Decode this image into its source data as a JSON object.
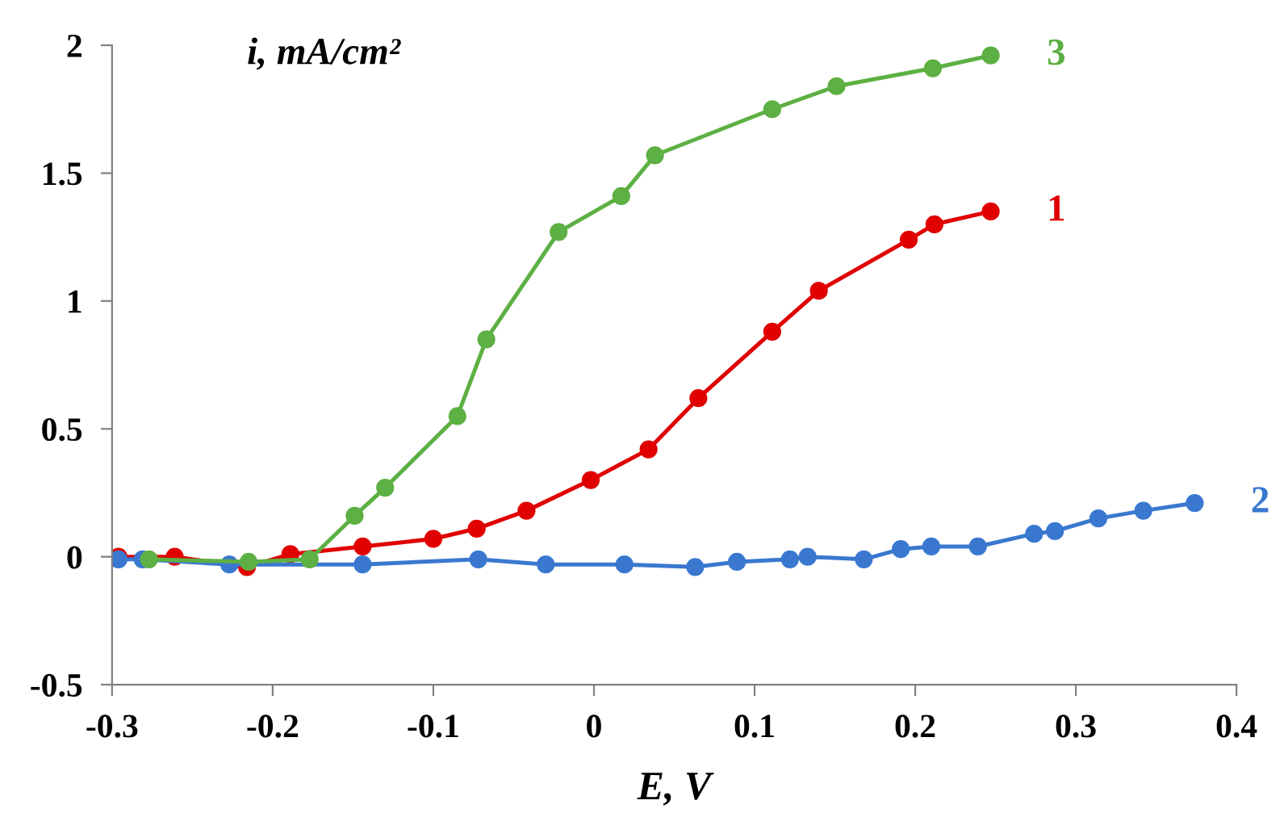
{
  "chart_data": {
    "type": "line",
    "xlabel": "E, V",
    "ylabel": "i, mA/cm²",
    "xlim": [
      -0.3,
      0.4
    ],
    "ylim": [
      -0.5,
      2
    ],
    "xticks": [
      -0.3,
      -0.2,
      -0.1,
      0,
      0.1,
      0.2,
      0.3,
      0.4
    ],
    "yticks": [
      -0.5,
      0,
      0.5,
      1,
      1.5,
      2
    ],
    "grid": false,
    "legend": false,
    "marker": "circle",
    "line_style": "solid",
    "series": [
      {
        "name": "1",
        "color": "#e00000",
        "x": [
          -0.296,
          -0.261,
          -0.216,
          -0.189,
          -0.144,
          -0.1,
          -0.073,
          -0.042,
          -0.002,
          0.034,
          0.065,
          0.111,
          0.14,
          0.196,
          0.212,
          0.247
        ],
        "values": [
          0.0,
          0.0,
          -0.04,
          0.01,
          0.04,
          0.07,
          0.11,
          0.18,
          0.3,
          0.42,
          0.62,
          0.88,
          1.04,
          1.24,
          1.3,
          1.35
        ]
      },
      {
        "name": "2",
        "color": "#3a78d0",
        "x": [
          -0.296,
          -0.281,
          -0.227,
          -0.144,
          -0.072,
          -0.03,
          0.019,
          0.063,
          0.089,
          0.122,
          0.133,
          0.168,
          0.191,
          0.21,
          0.239,
          0.274,
          0.287,
          0.314,
          0.342,
          0.374
        ],
        "values": [
          -0.01,
          -0.01,
          -0.03,
          -0.03,
          -0.01,
          -0.03,
          -0.03,
          -0.04,
          -0.02,
          -0.01,
          0.0,
          -0.01,
          0.03,
          0.04,
          0.04,
          0.09,
          0.1,
          0.15,
          0.18,
          0.21
        ]
      },
      {
        "name": "3",
        "color": "#5db043",
        "x": [
          -0.277,
          -0.215,
          -0.177,
          -0.149,
          -0.13,
          -0.085,
          -0.067,
          -0.022,
          0.017,
          0.038,
          0.111,
          0.151,
          0.211,
          0.247
        ],
        "values": [
          -0.01,
          -0.02,
          -0.01,
          0.16,
          0.27,
          0.55,
          0.85,
          1.27,
          1.41,
          1.57,
          1.75,
          1.84,
          1.91,
          1.96
        ]
      }
    ]
  }
}
